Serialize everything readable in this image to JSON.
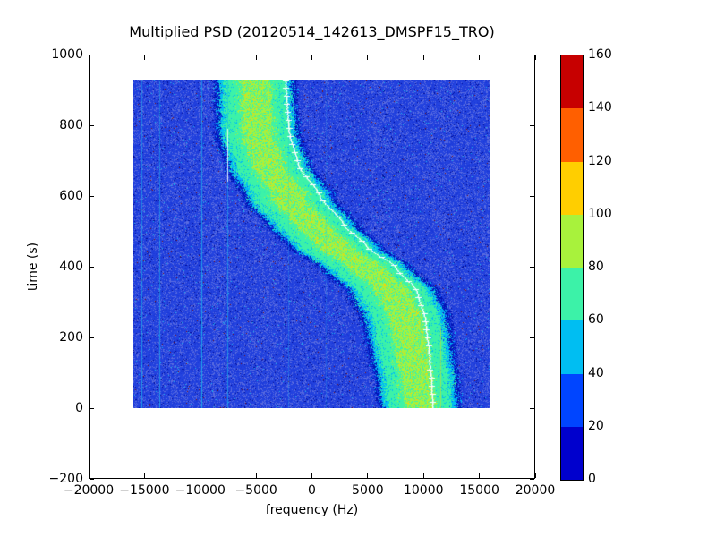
{
  "chart_data": {
    "type": "heatmap",
    "title": "Multiplied PSD (20120514_142613_DMSPF15_TRO)",
    "xlabel": "frequency (Hz)",
    "ylabel": "time (s)",
    "xlim": [
      -20000,
      20000
    ],
    "ylim": [
      -200,
      1000
    ],
    "xticks": {
      "values": [
        -20000,
        -15000,
        -10000,
        -5000,
        0,
        5000,
        10000,
        15000,
        20000
      ],
      "labels": [
        "−20000",
        "−15000",
        "−10000",
        "−5000",
        "0",
        "5000",
        "10000",
        "15000",
        "20000"
      ]
    },
    "yticks": {
      "values": [
        1000,
        800,
        600,
        400,
        200,
        0,
        -200
      ],
      "labels": [
        "1000",
        "800",
        "600",
        "400",
        "200",
        "0",
        "−200"
      ]
    },
    "grid": false,
    "legend": "none",
    "colorbar": {
      "position": "right",
      "vmin": 0,
      "vmax": 160,
      "ticks": [
        0,
        20,
        40,
        60,
        80,
        100,
        120,
        140,
        160
      ],
      "tick_labels": [
        "0",
        "20",
        "40",
        "60",
        "80",
        "100",
        "120",
        "140",
        "160"
      ],
      "colors_low_to_high": [
        "#0000cd",
        "#0045ff",
        "#00bef2",
        "#3cf2a8",
        "#a8f23c",
        "#ffce00",
        "#ff5f00",
        "#c70000"
      ]
    },
    "heatmap": {
      "freq_extent_hz": [
        -16000,
        16000
      ],
      "time_extent_s": [
        0,
        930
      ],
      "background_mean_value": 30,
      "band_value_core": [
        80,
        100
      ],
      "band_value_body": [
        60,
        80
      ],
      "band_value_fringe": [
        40,
        60
      ],
      "band_border_value": [
        0,
        20
      ]
    },
    "doppler_trace": {
      "marker": "+",
      "color": "#ffffff",
      "points_time_freq": [
        [
          0,
          10800
        ],
        [
          70,
          10700
        ],
        [
          150,
          10500
        ],
        [
          250,
          10150
        ],
        [
          330,
          9400
        ],
        [
          400,
          7450
        ],
        [
          455,
          4950
        ],
        [
          520,
          2800
        ],
        [
          600,
          700
        ],
        [
          690,
          -1250
        ],
        [
          780,
          -2060
        ],
        [
          860,
          -2260
        ],
        [
          930,
          -2400
        ]
      ]
    },
    "band": {
      "center_offset_below_trace_hz": [
        [
          0,
          1100
        ],
        [
          200,
          1600
        ],
        [
          465,
          2870
        ],
        [
          700,
          2700
        ],
        [
          930,
          2650
        ]
      ],
      "halfwidth_hz": [
        [
          0,
          3300
        ],
        [
          465,
          3810
        ],
        [
          930,
          3250
        ]
      ]
    },
    "interference_lines": [
      {
        "freq": -15270,
        "strength": 0.7,
        "color": "#18b6ee"
      },
      {
        "freq": -13660,
        "strength": 0.65,
        "color": "#18b6ee"
      },
      {
        "freq": -9900,
        "strength": 0.85,
        "color": "#18b6ee"
      },
      {
        "freq": -7600,
        "strength": 0.65,
        "color": "#18b6ee",
        "white_t": [
          640,
          790
        ]
      },
      {
        "freq": -2100,
        "strength": 0.3,
        "color": "#18b6ee"
      },
      {
        "freq": 1250,
        "strength": 0.25,
        "color": "#18b6ee"
      },
      {
        "freq": 9850,
        "strength": 0.4,
        "color": "#ffd400",
        "t": [
          0,
          380
        ]
      },
      {
        "freq": 11500,
        "strength": 0.45,
        "color": "#ffd400",
        "t": [
          0,
          230
        ]
      }
    ]
  }
}
